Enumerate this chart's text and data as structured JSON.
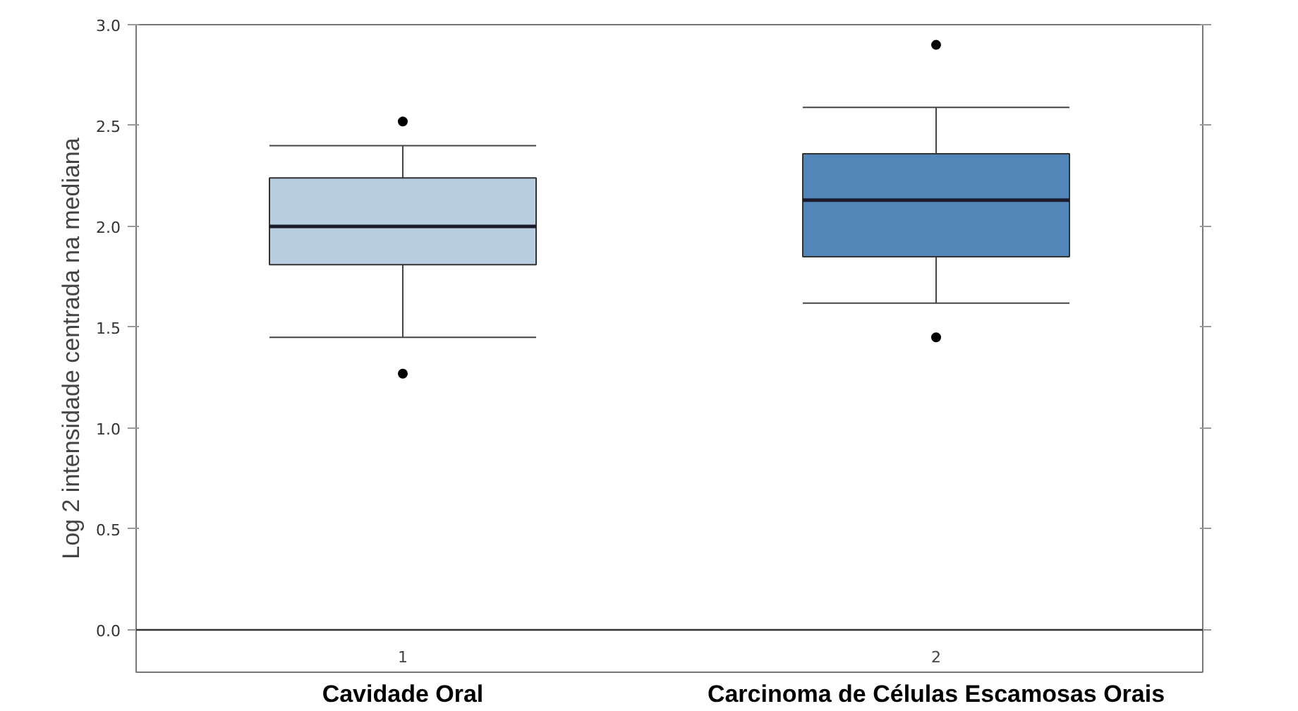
{
  "chart_data": {
    "type": "box",
    "ylabel": "Log 2 intensidade centrada na mediana",
    "categories": [
      "1",
      "2"
    ],
    "series": [
      {
        "color": "#b9cde0",
        "boxes": [
          {
            "low": 1.45,
            "q1": 1.81,
            "median": 2.0,
            "q3": 2.24,
            "high": 2.4,
            "outliers": [
              2.52,
              1.27
            ]
          },
          null
        ]
      },
      {
        "color": "#5286b8",
        "boxes": [
          null,
          {
            "low": 1.62,
            "q1": 1.85,
            "median": 2.13,
            "q3": 2.36,
            "high": 2.59,
            "outliers": [
              2.9,
              1.45
            ]
          }
        ]
      }
    ],
    "ylim": [
      -0.21,
      3.0
    ],
    "yticks": [
      {
        "value": 0.0,
        "label": "0.0"
      },
      {
        "value": 0.5,
        "label": "0.5"
      },
      {
        "value": 1.0,
        "label": "1.0"
      },
      {
        "value": 1.5,
        "label": "1.5"
      },
      {
        "value": 2.0,
        "label": "2.0"
      },
      {
        "value": 2.5,
        "label": "2.5"
      },
      {
        "value": 3.0,
        "label": "3.0"
      }
    ],
    "ref_lines": [
      {
        "axis": "y",
        "value": 0,
        "color": "#333333"
      }
    ],
    "annotations": [
      "Cavidade Oral",
      "Carcinoma de Células Escamosas Orais"
    ]
  }
}
